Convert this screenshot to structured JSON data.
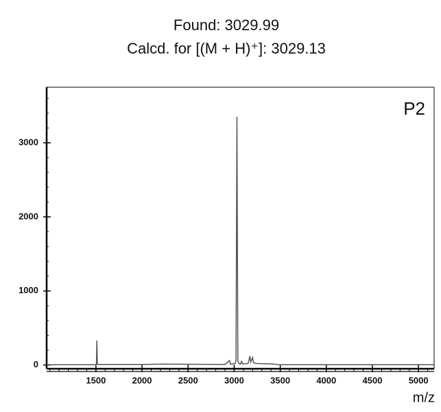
{
  "chart_data": {
    "type": "line",
    "title": "Found: 3029.99",
    "subtitle": "Calcd. for [(M + H)⁺]: 3029.13",
    "annotation": "P2",
    "x_label": "m/z",
    "color": "#555555",
    "x": [
      965,
      1500,
      1505,
      1510,
      1515,
      1520,
      2000,
      2240,
      2900,
      2950,
      2960,
      2970,
      3010,
      3020,
      3030,
      3040,
      3050,
      3070,
      3080,
      3090,
      3150,
      3160,
      3170,
      3180,
      3200,
      3210,
      3250,
      3400,
      3500,
      5170
    ],
    "values": [
      5,
      5,
      10,
      330,
      10,
      8,
      8,
      12,
      8,
      60,
      10,
      15,
      20,
      60,
      3350,
      60,
      20,
      15,
      50,
      15,
      20,
      60,
      120,
      40,
      100,
      30,
      20,
      15,
      5,
      5
    ],
    "xlim": [
      965,
      5170
    ],
    "ylim": [
      -50,
      3750
    ],
    "xticks": [
      1500,
      2000,
      2500,
      3000,
      3500,
      4000,
      4500,
      5000
    ],
    "yticks": [
      0,
      1000,
      2000,
      3000
    ]
  }
}
